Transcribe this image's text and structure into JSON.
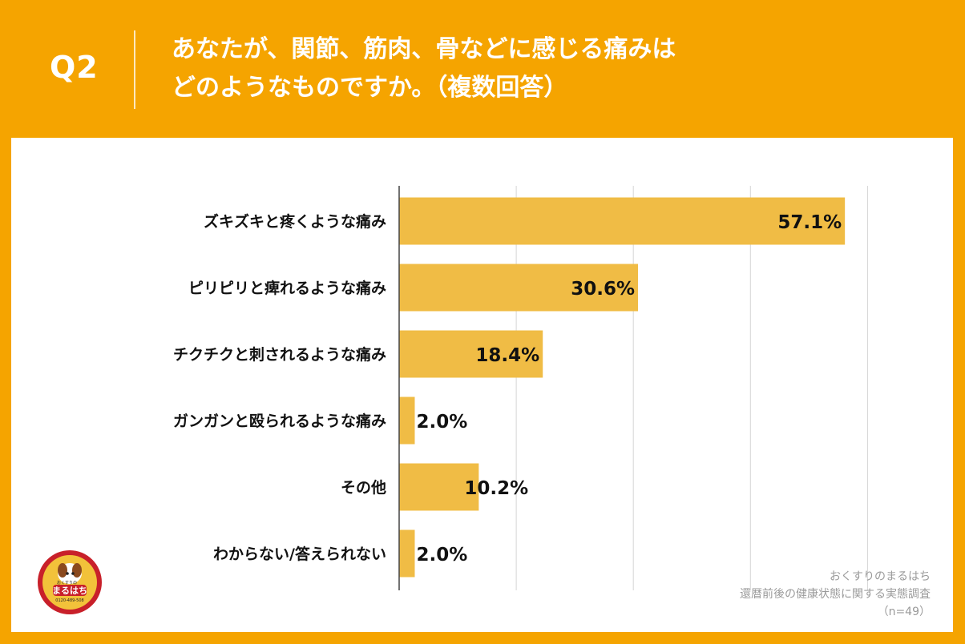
{
  "header": {
    "q_label": "Q2",
    "title_line1": "あなたが、関節、筋肉、骨などに感じる痛みは",
    "title_line2": "どのようなものですか。（複数回答）"
  },
  "chart_data": {
    "type": "bar",
    "orientation": "horizontal",
    "categories": [
      "ズキズキと疼くような痛み",
      "ピリピリと痺れるような痛み",
      "チクチクと刺されるような痛み",
      "ガンガンと殴られるような痛み",
      "その他",
      "わからない/答えられない"
    ],
    "values": [
      57.1,
      30.6,
      18.4,
      2.0,
      10.2,
      2.0
    ],
    "value_labels": [
      "57.1%",
      "30.6%",
      "18.4%",
      "2.0%",
      "10.2%",
      "2.0%"
    ],
    "xlim": [
      0,
      60
    ],
    "grid": true,
    "bar_color": "#F0BC45",
    "grid_color": "#D5D5D5"
  },
  "source": {
    "line1": "おくすりのまるはち",
    "line2": "還暦前後の健康状態に関する実態調査",
    "line3": "（n=49）"
  },
  "logo": {
    "text": "まるはち",
    "sub_text": "おくすりの",
    "phone": "0120-489-508"
  },
  "colors": {
    "background": "#F5A400",
    "panel": "#FFFFFF",
    "title_text": "#FFFFFF"
  }
}
